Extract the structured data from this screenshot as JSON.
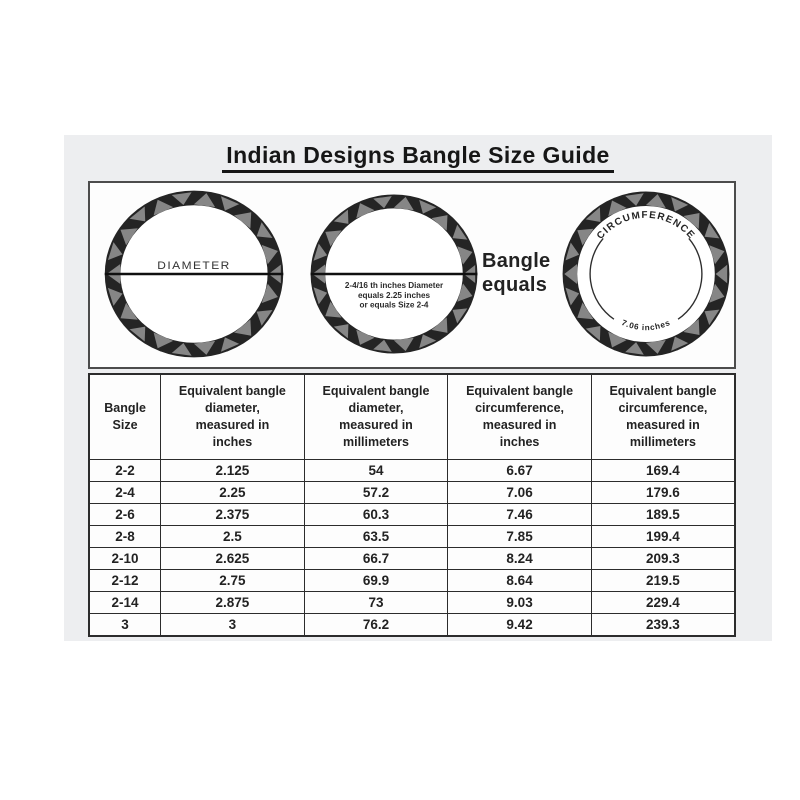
{
  "title": "Indian Designs Bangle Size Guide",
  "diagram": {
    "bangle1": {
      "label": "DIAMETER"
    },
    "bangle2": {
      "caption_lines": [
        "2-4/16 th inches Diameter",
        "equals 2.25 inches",
        "or equals Size 2-4"
      ]
    },
    "equals_label": "Bangle\nequals",
    "bangle3": {
      "top_label": "CIRCUMFERENCE",
      "bottom_label": "7.06 inches"
    }
  },
  "table": {
    "headers": [
      "Bangle\nSize",
      "Equivalent bangle\ndiameter,\nmeasured in\ninches",
      "Equivalent bangle\ndiameter,\nmeasured in\nmillimeters",
      "Equivalent bangle\ncircumference,\nmeasured in\ninches",
      "Equivalent bangle\ncircumference,\nmeasured in\nmillimeters"
    ],
    "rows": [
      [
        "2-2",
        "2.125",
        "54",
        "6.67",
        "169.4"
      ],
      [
        "2-4",
        "2.25",
        "57.2",
        "7.06",
        "179.6"
      ],
      [
        "2-6",
        "2.375",
        "60.3",
        "7.46",
        "189.5"
      ],
      [
        "2-8",
        "2.5",
        "63.5",
        "7.85",
        "199.4"
      ],
      [
        "2-10",
        "2.625",
        "66.7",
        "8.24",
        "209.3"
      ],
      [
        "2-12",
        "2.75",
        "69.9",
        "8.64",
        "219.5"
      ],
      [
        "2-14",
        "2.875",
        "73",
        "9.03",
        "229.4"
      ],
      [
        "3",
        "3",
        "76.2",
        "9.42",
        "239.3"
      ]
    ]
  },
  "colors": {
    "sheet_bg": "#edeef0",
    "ring_dark": "#242424",
    "ring_gray": "#868686",
    "ink": "#1c1c1c"
  }
}
